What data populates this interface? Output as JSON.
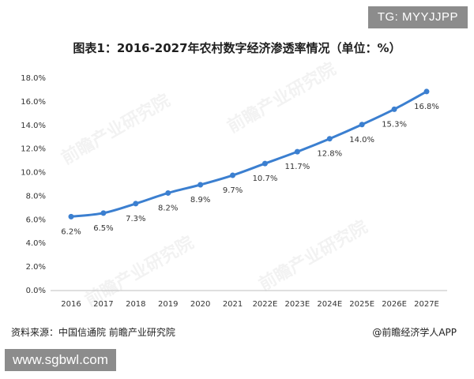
{
  "header": {
    "tag": "TG: MYYJJPP",
    "title": "图表1：2016-2027年农村数字经济渗透率情况（单位：%）"
  },
  "chart_data": {
    "type": "line",
    "title": "图表1：2016-2027年农村数字经济渗透率情况（单位：%）",
    "categories": [
      "2016",
      "2017",
      "2018",
      "2019",
      "2020",
      "2021",
      "2022E",
      "2023E",
      "2024E",
      "2025E",
      "2026E",
      "2027E"
    ],
    "series": [
      {
        "values": [
          6.2,
          6.5,
          7.3,
          8.2,
          8.9,
          9.7,
          10.7,
          11.7,
          12.8,
          14.0,
          15.3,
          16.8
        ],
        "labels": [
          "6.2%",
          "6.5%",
          "7.3%",
          "8.2%",
          "8.9%",
          "9.7%",
          "10.7%",
          "11.7%",
          "12.8%",
          "14.0%",
          "15.3%",
          "16.8%"
        ]
      }
    ],
    "ylim": [
      0,
      18
    ],
    "yticks": [
      "0.0%",
      "2.0%",
      "4.0%",
      "6.0%",
      "8.0%",
      "10.0%",
      "12.0%",
      "14.0%",
      "16.0%",
      "18.0%"
    ],
    "line_color": "#3b7fd0",
    "grid": false,
    "watermark": "前瞻产业研究院"
  },
  "footer": {
    "source": "资料来源：中国信通院 前瞻产业研究院",
    "brand": "@前瞻经济学人APP",
    "site": "www.sgbwl.com"
  }
}
